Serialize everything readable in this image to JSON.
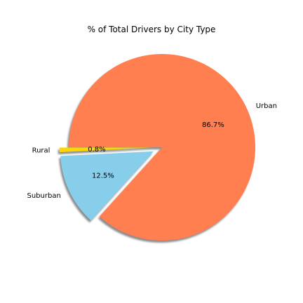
{
  "chart_data": {
    "type": "pie",
    "title": "% of Total Drivers by City Type",
    "slices": [
      {
        "label": "Rural",
        "value": 0.8,
        "pct_label": "0.8%",
        "color": "#FFD700",
        "explode": true
      },
      {
        "label": "Suburban",
        "value": 12.5,
        "pct_label": "12.5%",
        "color": "#87CEEB",
        "explode": true
      },
      {
        "label": "Urban",
        "value": 86.7,
        "pct_label": "86.7%",
        "color": "#FF7F50",
        "explode": false
      }
    ],
    "start_angle_deg": 180,
    "shadow": true,
    "legend": "none"
  }
}
